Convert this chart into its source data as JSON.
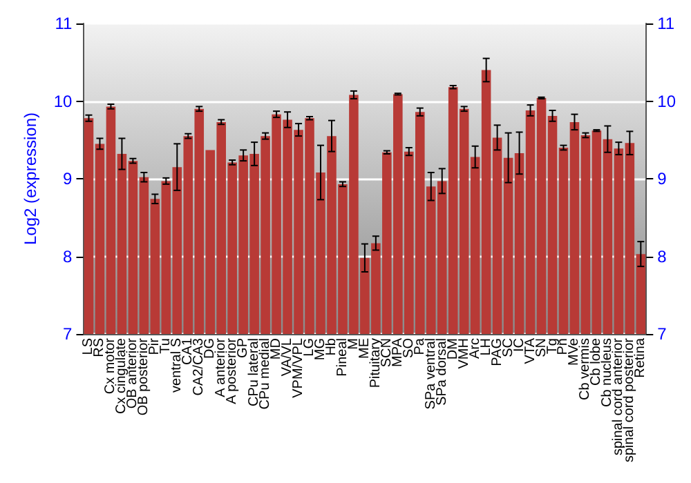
{
  "chart_data": {
    "type": "bar",
    "ylabel": "Log2 (expression)",
    "categories": [
      "LS",
      "RS",
      "Cx motor",
      "Cx cingulate",
      "OB anterior",
      "OB posterior",
      "Pir",
      "Tu",
      "ventral S",
      "CA1",
      "CA2/CA3",
      "DG",
      "A anterior",
      "A posterior",
      "GP",
      "CPu lateral",
      "CPu medial",
      "MD",
      "VA/VL",
      "VPM/VPL",
      "LG",
      "MG",
      "Hb",
      "Pineal",
      "M",
      "ME",
      "Pituitary",
      "SCN",
      "MPA",
      "SO",
      "Pa",
      "SPa ventral",
      "SPa dorsal",
      "DM",
      "VMH",
      "Arc",
      "LH",
      "PAG",
      "SC",
      "IC",
      "VTA",
      "SN",
      "Tg",
      "Pn",
      "MVe",
      "Cb vermis",
      "Cb lobe",
      "Cb nucleus",
      "spinal cord anterior",
      "spinal cord posterior",
      "Retina"
    ],
    "values": [
      9.78,
      9.45,
      9.93,
      9.32,
      9.23,
      9.02,
      8.74,
      8.97,
      9.15,
      9.55,
      9.9,
      9.37,
      9.73,
      9.21,
      9.3,
      9.32,
      9.55,
      9.83,
      9.76,
      9.63,
      9.78,
      9.08,
      9.55,
      8.93,
      10.08,
      7.98,
      8.17,
      9.34,
      10.09,
      9.35,
      9.86,
      8.9,
      8.97,
      10.18,
      9.9,
      9.28,
      10.4,
      9.53,
      9.27,
      9.33,
      9.88,
      10.04,
      9.81,
      9.4,
      9.73,
      9.56,
      9.62,
      9.51,
      9.39,
      9.46,
      8.03
    ],
    "errors": [
      0.04,
      0.07,
      0.03,
      0.2,
      0.03,
      0.06,
      0.06,
      0.04,
      0.3,
      0.03,
      0.03,
      null,
      0.03,
      0.03,
      0.07,
      0.15,
      0.04,
      0.04,
      0.1,
      0.08,
      0.02,
      0.35,
      0.2,
      0.03,
      0.05,
      0.18,
      0.09,
      0.02,
      0.01,
      0.05,
      0.05,
      0.18,
      0.16,
      0.02,
      0.03,
      0.14,
      0.15,
      0.16,
      0.32,
      0.27,
      0.07,
      0.01,
      0.07,
      0.03,
      0.1,
      0.03,
      0.01,
      0.17,
      0.08,
      0.15,
      0.16
    ],
    "color": "#b83a36",
    "ylim": [
      7,
      11
    ],
    "yticks": [
      7,
      8,
      9,
      10,
      11
    ],
    "y2lim": [
      7,
      11
    ],
    "y2ticks": [
      7,
      8,
      9,
      10,
      11
    ],
    "grid": "y"
  }
}
